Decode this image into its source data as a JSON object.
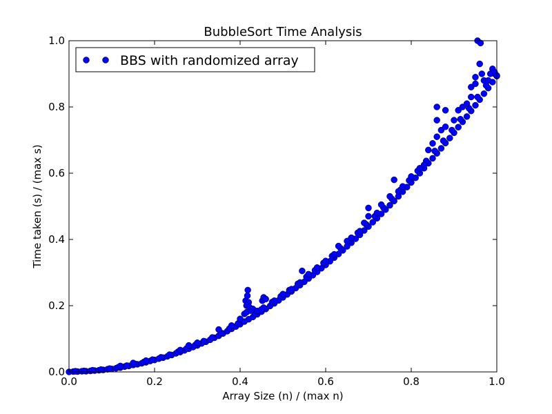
{
  "chart_data": {
    "type": "scatter",
    "title": "BubbleSort Time Analysis",
    "xlabel": "Array Size (n) / (max n)",
    "ylabel": "Time taken (s) / (max s)",
    "xlim": [
      0.0,
      1.0
    ],
    "ylim": [
      0.0,
      1.0
    ],
    "xticks": [
      "0.0",
      "0.2",
      "0.4",
      "0.6",
      "0.8",
      "1.0"
    ],
    "yticks": [
      "0.0",
      "0.2",
      "0.4",
      "0.6",
      "0.8",
      "1.0"
    ],
    "grid": false,
    "legend_position": "top-left",
    "series": [
      {
        "name": "BBS with randomized array",
        "color": "#0000ff",
        "edge_color": "#000000",
        "marker": "circle",
        "points": [
          [
            0.0,
            0.0
          ],
          [
            0.02,
            0.001
          ],
          [
            0.04,
            0.002
          ],
          [
            0.06,
            0.004
          ],
          [
            0.08,
            0.006
          ],
          [
            0.1,
            0.009
          ],
          [
            0.12,
            0.013
          ],
          [
            0.14,
            0.018
          ],
          [
            0.16,
            0.023
          ],
          [
            0.18,
            0.029
          ],
          [
            0.2,
            0.036
          ],
          [
            0.22,
            0.043
          ],
          [
            0.24,
            0.051
          ],
          [
            0.26,
            0.06
          ],
          [
            0.28,
            0.07
          ],
          [
            0.3,
            0.08
          ],
          [
            0.32,
            0.091
          ],
          [
            0.34,
            0.103
          ],
          [
            0.36,
            0.116
          ],
          [
            0.38,
            0.13
          ],
          [
            0.4,
            0.144
          ],
          [
            0.42,
            0.159
          ],
          [
            0.44,
            0.174
          ],
          [
            0.46,
            0.19
          ],
          [
            0.48,
            0.207
          ],
          [
            0.5,
            0.225
          ],
          [
            0.52,
            0.243
          ],
          [
            0.54,
            0.262
          ],
          [
            0.56,
            0.282
          ],
          [
            0.58,
            0.302
          ],
          [
            0.6,
            0.323
          ],
          [
            0.62,
            0.345
          ],
          [
            0.64,
            0.367
          ],
          [
            0.66,
            0.39
          ],
          [
            0.68,
            0.414
          ],
          [
            0.7,
            0.439
          ],
          [
            0.72,
            0.464
          ],
          [
            0.74,
            0.49
          ],
          [
            0.76,
            0.516
          ],
          [
            0.78,
            0.544
          ],
          [
            0.8,
            0.572
          ],
          [
            0.82,
            0.6
          ],
          [
            0.84,
            0.63
          ],
          [
            0.86,
            0.66
          ],
          [
            0.88,
            0.691
          ],
          [
            0.9,
            0.722
          ],
          [
            0.92,
            0.755
          ],
          [
            0.94,
            0.788
          ],
          [
            0.96,
            0.822
          ],
          [
            0.98,
            0.857
          ],
          [
            1.0,
            0.893
          ],
          [
            0.01,
            0.001
          ],
          [
            0.03,
            0.002
          ],
          [
            0.05,
            0.003
          ],
          [
            0.07,
            0.005
          ],
          [
            0.09,
            0.008
          ],
          [
            0.11,
            0.011
          ],
          [
            0.13,
            0.016
          ],
          [
            0.15,
            0.021
          ],
          [
            0.17,
            0.026
          ],
          [
            0.19,
            0.033
          ],
          [
            0.21,
            0.04
          ],
          [
            0.23,
            0.047
          ],
          [
            0.25,
            0.056
          ],
          [
            0.27,
            0.065
          ],
          [
            0.29,
            0.075
          ],
          [
            0.31,
            0.086
          ],
          [
            0.33,
            0.097
          ],
          [
            0.35,
            0.109
          ],
          [
            0.37,
            0.123
          ],
          [
            0.39,
            0.137
          ],
          [
            0.41,
            0.152
          ],
          [
            0.43,
            0.166
          ],
          [
            0.45,
            0.182
          ],
          [
            0.47,
            0.199
          ],
          [
            0.49,
            0.216
          ],
          [
            0.51,
            0.234
          ],
          [
            0.53,
            0.253
          ],
          [
            0.55,
            0.272
          ],
          [
            0.57,
            0.292
          ],
          [
            0.59,
            0.313
          ],
          [
            0.61,
            0.334
          ],
          [
            0.63,
            0.356
          ],
          [
            0.65,
            0.379
          ],
          [
            0.67,
            0.402
          ],
          [
            0.69,
            0.427
          ],
          [
            0.71,
            0.452
          ],
          [
            0.73,
            0.477
          ],
          [
            0.75,
            0.503
          ],
          [
            0.77,
            0.53
          ],
          [
            0.79,
            0.558
          ],
          [
            0.81,
            0.586
          ],
          [
            0.83,
            0.615
          ],
          [
            0.85,
            0.645
          ],
          [
            0.87,
            0.675
          ],
          [
            0.89,
            0.706
          ],
          [
            0.91,
            0.739
          ],
          [
            0.93,
            0.771
          ],
          [
            0.95,
            0.805
          ],
          [
            0.97,
            0.84
          ],
          [
            0.99,
            0.875
          ],
          [
            0.015,
            0.002
          ],
          [
            0.035,
            0.003
          ],
          [
            0.055,
            0.005
          ],
          [
            0.075,
            0.007
          ],
          [
            0.095,
            0.01
          ],
          [
            0.115,
            0.014
          ],
          [
            0.135,
            0.019
          ],
          [
            0.155,
            0.024
          ],
          [
            0.175,
            0.03
          ],
          [
            0.195,
            0.037
          ],
          [
            0.215,
            0.044
          ],
          [
            0.235,
            0.052
          ],
          [
            0.255,
            0.061
          ],
          [
            0.275,
            0.071
          ],
          [
            0.295,
            0.081
          ],
          [
            0.315,
            0.093
          ],
          [
            0.335,
            0.104
          ],
          [
            0.355,
            0.118
          ],
          [
            0.375,
            0.131
          ],
          [
            0.395,
            0.146
          ],
          [
            0.435,
            0.177
          ],
          [
            0.455,
            0.194
          ],
          [
            0.475,
            0.211
          ],
          [
            0.495,
            0.228
          ],
          [
            0.515,
            0.247
          ],
          [
            0.535,
            0.266
          ],
          [
            0.555,
            0.287
          ],
          [
            0.575,
            0.307
          ],
          [
            0.595,
            0.329
          ],
          [
            0.615,
            0.35
          ],
          [
            0.635,
            0.373
          ],
          [
            0.655,
            0.396
          ],
          [
            0.675,
            0.42
          ],
          [
            0.695,
            0.445
          ],
          [
            0.715,
            0.47
          ],
          [
            0.735,
            0.496
          ],
          [
            0.755,
            0.522
          ],
          [
            0.775,
            0.55
          ],
          [
            0.795,
            0.578
          ],
          [
            0.815,
            0.607
          ],
          [
            0.835,
            0.637
          ],
          [
            0.855,
            0.667
          ],
          [
            0.875,
            0.698
          ],
          [
            0.895,
            0.73
          ],
          [
            0.915,
            0.763
          ],
          [
            0.935,
            0.796
          ],
          [
            0.955,
            0.83
          ],
          [
            0.975,
            0.865
          ],
          [
            0.995,
            0.9
          ],
          [
            0.12,
            0.018
          ],
          [
            0.15,
            0.027
          ],
          [
            0.18,
            0.034
          ],
          [
            0.26,
            0.066
          ],
          [
            0.28,
            0.08
          ],
          [
            0.3,
            0.088
          ],
          [
            0.35,
            0.128
          ],
          [
            0.38,
            0.14
          ],
          [
            0.4,
            0.16
          ],
          [
            0.41,
            0.175
          ],
          [
            0.415,
            0.18
          ],
          [
            0.413,
            0.215
          ],
          [
            0.415,
            0.2
          ],
          [
            0.417,
            0.23
          ],
          [
            0.418,
            0.247
          ],
          [
            0.42,
            0.21
          ],
          [
            0.422,
            0.195
          ],
          [
            0.425,
            0.185
          ],
          [
            0.43,
            0.19
          ],
          [
            0.44,
            0.184
          ],
          [
            0.45,
            0.189
          ],
          [
            0.452,
            0.215
          ],
          [
            0.455,
            0.225
          ],
          [
            0.46,
            0.22
          ],
          [
            0.48,
            0.215
          ],
          [
            0.5,
            0.235
          ],
          [
            0.52,
            0.25
          ],
          [
            0.54,
            0.27
          ],
          [
            0.545,
            0.305
          ],
          [
            0.56,
            0.295
          ],
          [
            0.58,
            0.315
          ],
          [
            0.6,
            0.335
          ],
          [
            0.62,
            0.355
          ],
          [
            0.63,
            0.38
          ],
          [
            0.65,
            0.395
          ],
          [
            0.66,
            0.405
          ],
          [
            0.68,
            0.425
          ],
          [
            0.69,
            0.45
          ],
          [
            0.7,
            0.47
          ],
          [
            0.7,
            0.495
          ],
          [
            0.72,
            0.48
          ],
          [
            0.73,
            0.505
          ],
          [
            0.75,
            0.53
          ],
          [
            0.76,
            0.58
          ],
          [
            0.77,
            0.545
          ],
          [
            0.78,
            0.56
          ],
          [
            0.8,
            0.59
          ],
          [
            0.82,
            0.615
          ],
          [
            0.83,
            0.625
          ],
          [
            0.84,
            0.67
          ],
          [
            0.85,
            0.69
          ],
          [
            0.86,
            0.71
          ],
          [
            0.86,
            0.76
          ],
          [
            0.86,
            0.8
          ],
          [
            0.87,
            0.73
          ],
          [
            0.88,
            0.74
          ],
          [
            0.88,
            0.79
          ],
          [
            0.9,
            0.76
          ],
          [
            0.91,
            0.79
          ],
          [
            0.92,
            0.8
          ],
          [
            0.93,
            0.81
          ],
          [
            0.94,
            0.83
          ],
          [
            0.94,
            0.86
          ],
          [
            0.95,
            0.87
          ],
          [
            0.95,
            0.89
          ],
          [
            0.955,
            1.0
          ],
          [
            0.962,
            0.993
          ],
          [
            0.96,
            0.93
          ],
          [
            0.965,
            0.9
          ],
          [
            0.97,
            0.88
          ],
          [
            0.98,
            0.88
          ],
          [
            0.985,
            0.9
          ],
          [
            0.99,
            0.915
          ],
          [
            0.995,
            0.905
          ],
          [
            1.0,
            0.895
          ]
        ]
      }
    ]
  }
}
